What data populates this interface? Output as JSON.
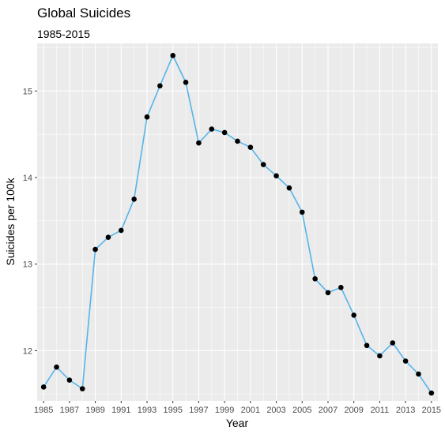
{
  "chart_data": {
    "type": "line",
    "title": "Global Suicides",
    "subtitle": "1985-2015",
    "xlabel": "Year",
    "ylabel": "Suicides per 100k",
    "x": [
      1985,
      1986,
      1987,
      1988,
      1989,
      1990,
      1991,
      1992,
      1993,
      1994,
      1995,
      1996,
      1997,
      1998,
      1999,
      2000,
      2001,
      2002,
      2003,
      2004,
      2005,
      2006,
      2007,
      2008,
      2009,
      2010,
      2011,
      2012,
      2013,
      2014,
      2015
    ],
    "series": [
      {
        "values": [
          11.58,
          11.81,
          11.66,
          11.56,
          13.17,
          13.31,
          13.39,
          13.75,
          14.7,
          15.06,
          15.41,
          15.1,
          14.4,
          14.56,
          14.52,
          14.42,
          14.35,
          14.15,
          14.02,
          13.88,
          13.6,
          12.83,
          12.67,
          12.73,
          12.41,
          12.06,
          11.94,
          12.09,
          11.88,
          11.73,
          11.51
        ]
      }
    ],
    "xticks": [
      "1985",
      "1987",
      "1989",
      "1991",
      "1993",
      "1995",
      "1997",
      "1999",
      "2001",
      "2003",
      "2005",
      "2007",
      "2009",
      "2011",
      "2013",
      "2015"
    ],
    "yticks": [
      "12",
      "13",
      "14",
      "15"
    ],
    "xlim": [
      1984.5,
      2015.5
    ],
    "ylim": [
      11.42,
      15.55
    ],
    "grid": true,
    "legend": "none",
    "colors": {
      "line": "#56b4e9",
      "point": "#000000",
      "panel": "#ebebeb",
      "grid": "#ffffff"
    }
  }
}
